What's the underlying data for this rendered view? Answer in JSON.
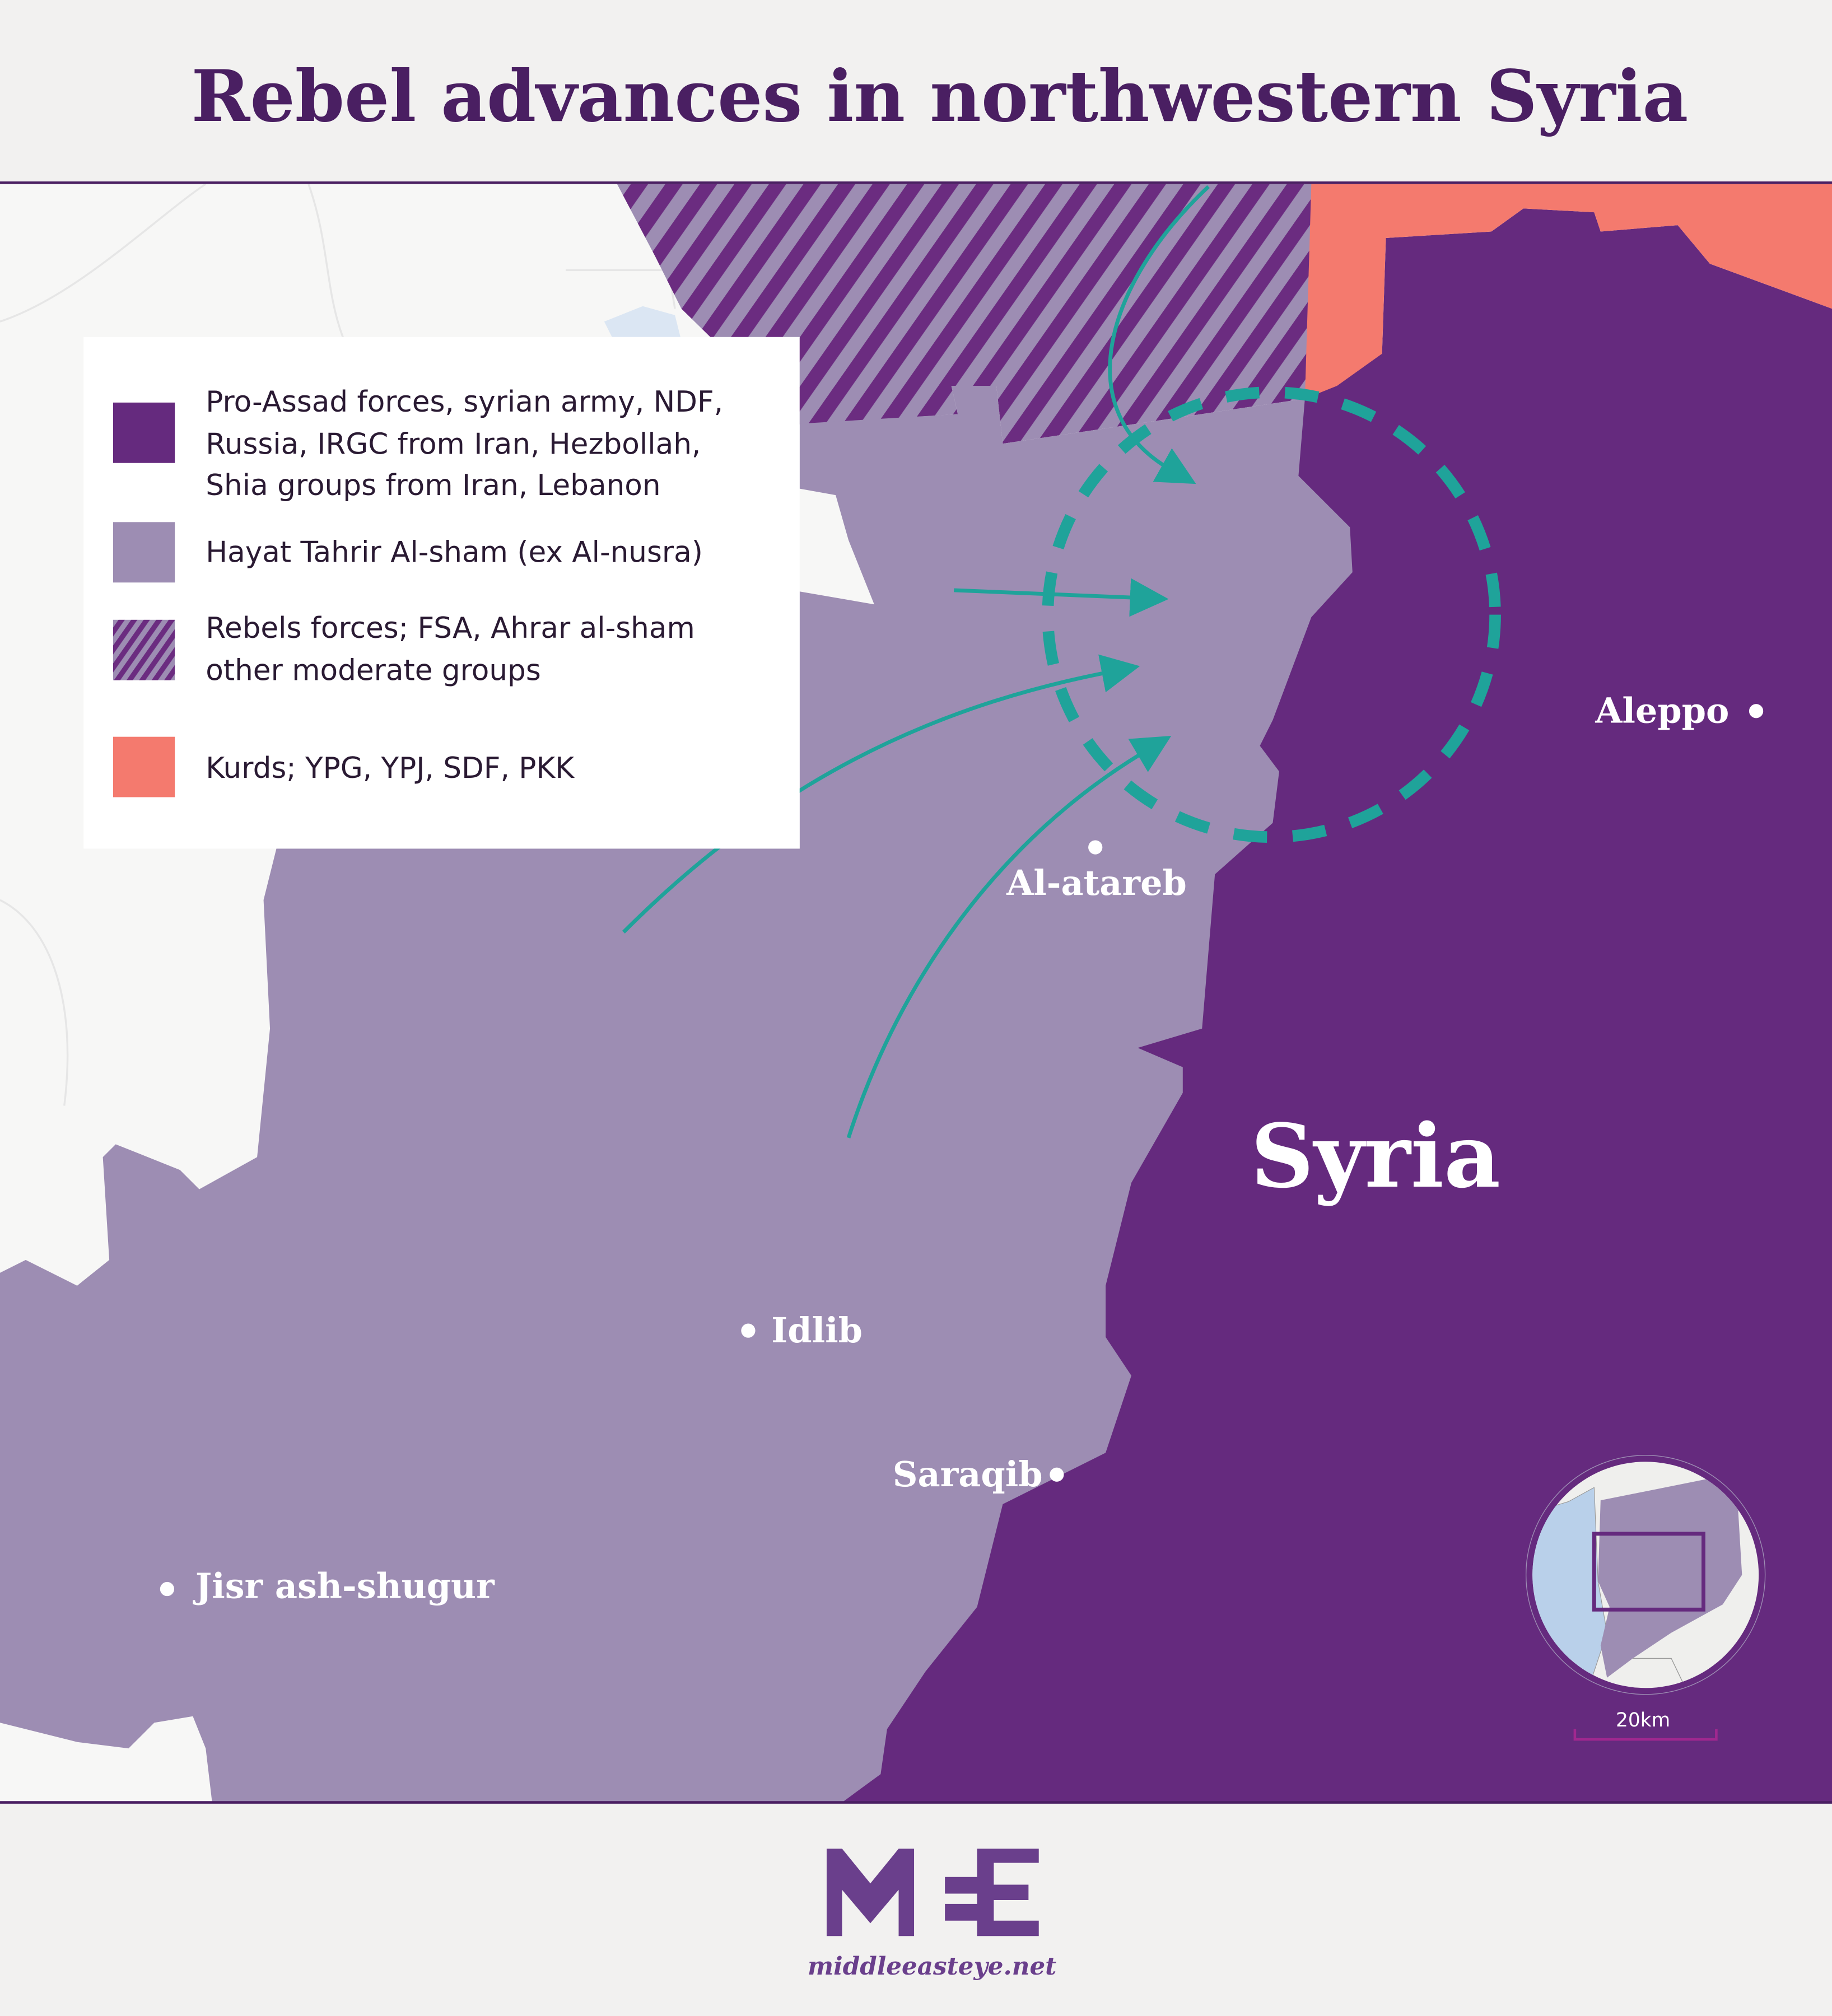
{
  "title": "Rebel advances in northwestern Syria",
  "legend": [
    {
      "lines": [
        "Pro-Assad forces, syrian army, NDF,",
        "Russia, IRGC from Iran, Hezbollah,",
        "Shia groups from Iran, Lebanon"
      ],
      "color": "#652a7e",
      "pattern": "solid"
    },
    {
      "lines": [
        "Hayat Tahrir Al-sham (ex Al-nusra)"
      ],
      "color": "#9d8db3",
      "pattern": "solid"
    },
    {
      "lines": [
        "Rebels forces; FSA, Ahrar al-sham",
        "other moderate groups"
      ],
      "color": "#6b2c80",
      "pattern": "hatched"
    },
    {
      "lines": [
        "Kurds; YPG, YPJ, SDF, PKK"
      ],
      "color": "#f47a6e",
      "pattern": "solid"
    }
  ],
  "cities": {
    "aleppo": "Aleppo",
    "al_atareb": "Al-atareb",
    "idlib": "Idlib",
    "saraqib": "Saraqib",
    "jisr": "Jisr ash-shugur"
  },
  "country_label": "Syria",
  "scale_label": "20km",
  "logo": {
    "mark": "MEE",
    "url_text": "middleeasteye.net"
  },
  "colors": {
    "arrows": "#1fa39a",
    "title": "#4a1f62",
    "water": "#b9d0ea"
  }
}
